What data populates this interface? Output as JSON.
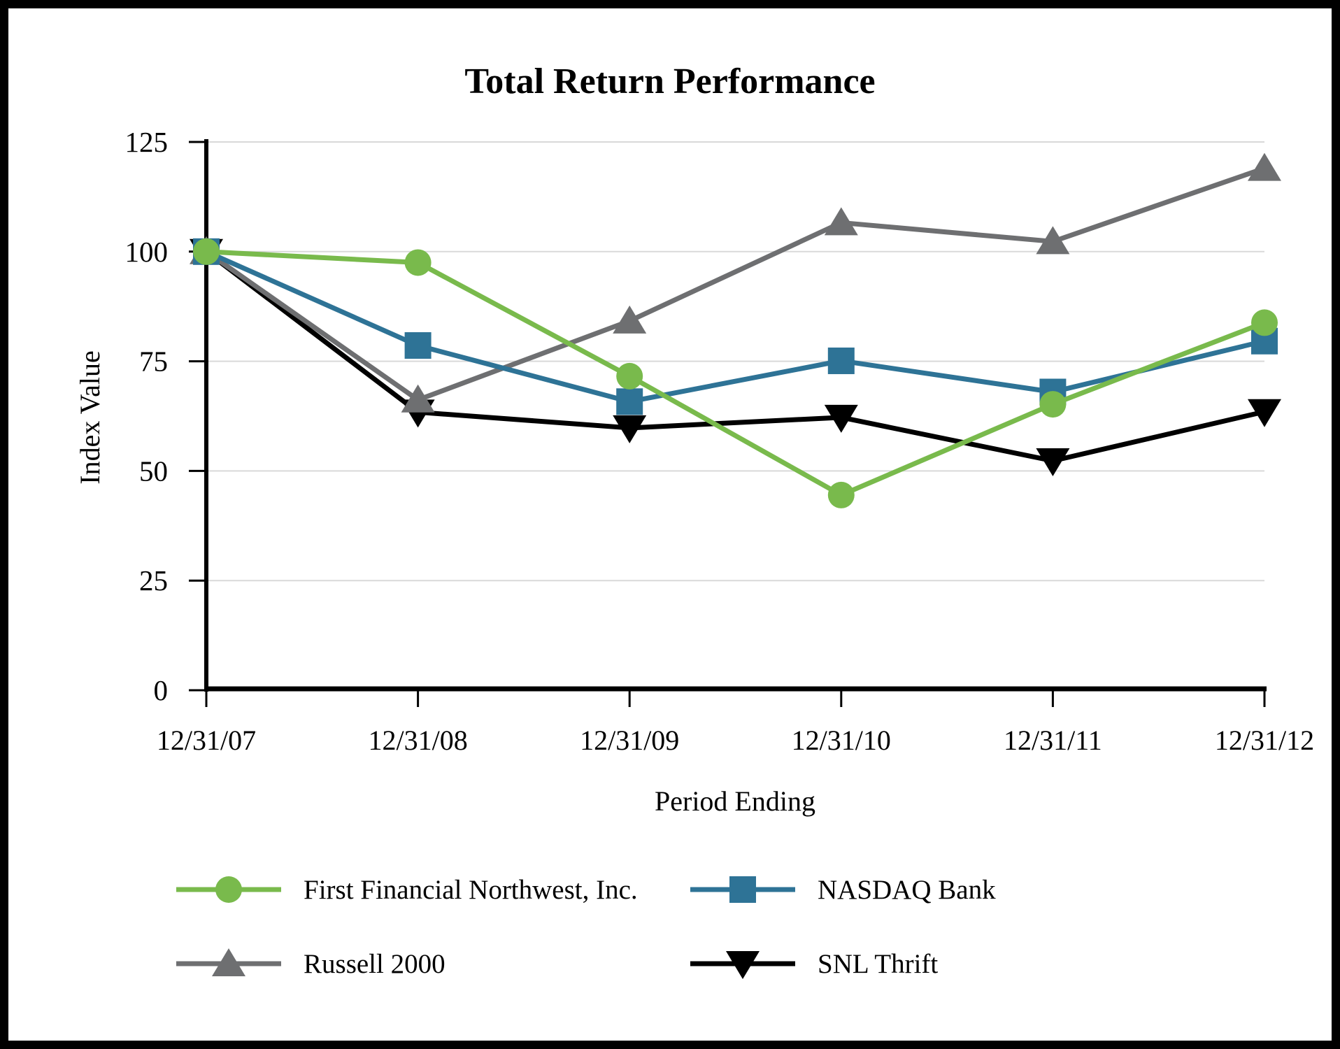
{
  "chart_data": {
    "type": "line",
    "title": "Total Return Performance",
    "xlabel": "Period Ending",
    "ylabel": "Index Value",
    "categories": [
      "12/31/07",
      "12/31/08",
      "12/31/09",
      "12/31/10",
      "12/31/11",
      "12/31/12"
    ],
    "series": [
      {
        "name": "First Financial Northwest, Inc.",
        "marker": "circle",
        "color": "#79BA4C",
        "values": [
          100.0,
          97.5,
          71.6,
          44.5,
          65.2,
          83.8
        ]
      },
      {
        "name": "NASDAQ Bank",
        "marker": "square",
        "color": "#2E7396",
        "values": [
          100.0,
          78.6,
          65.8,
          75.1,
          68.0,
          79.6
        ]
      },
      {
        "name": "Russell 2000",
        "marker": "triangle-up",
        "color": "#6E6F71",
        "values": [
          100.0,
          66.2,
          84.2,
          106.6,
          102.3,
          119.0
        ]
      },
      {
        "name": "SNL Thrift",
        "marker": "triangle-down",
        "color": "#000000",
        "values": [
          100.0,
          63.4,
          59.8,
          62.2,
          52.3,
          63.5
        ]
      }
    ],
    "ylim": [
      0,
      125
    ],
    "ytick_step": 25,
    "ytick_labels": [
      "0",
      "25",
      "50",
      "75",
      "100",
      "125"
    ],
    "grid": "horizontal",
    "gridline_color": "#D9D9D9",
    "axis_color": "#000000",
    "legend_position": "bottom"
  }
}
